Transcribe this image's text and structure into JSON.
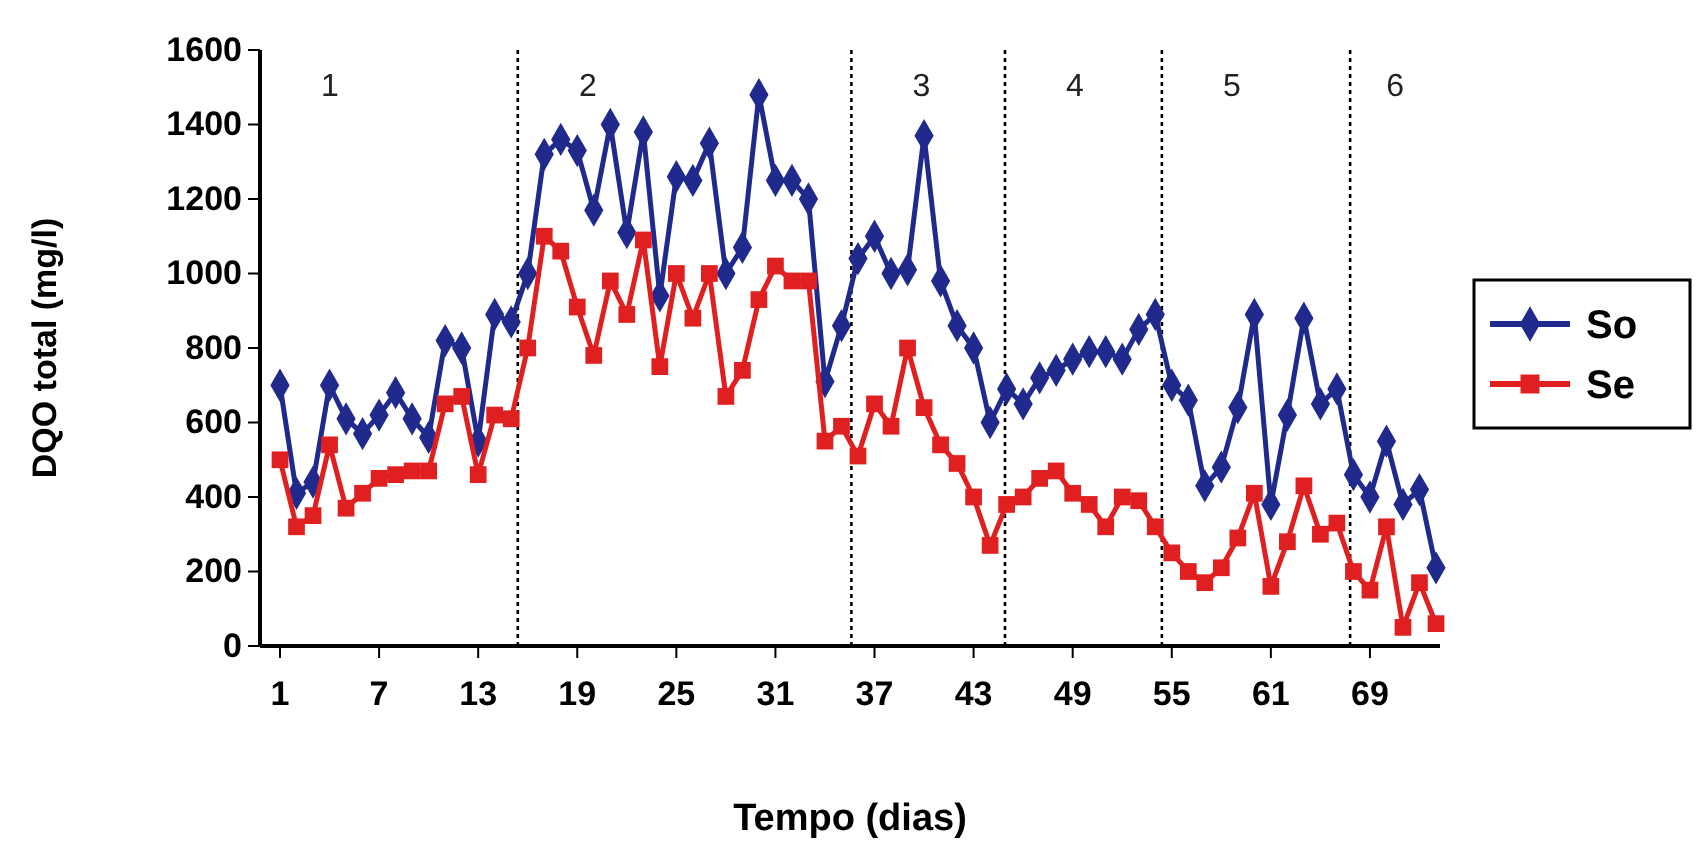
{
  "chart_data": {
    "type": "line",
    "xlabel": "Tempo (dias)",
    "ylabel": "DQO total (mg/l)",
    "categories": [
      "1",
      null,
      null,
      null,
      null,
      null,
      "7",
      null,
      null,
      null,
      null,
      null,
      "13",
      null,
      null,
      null,
      null,
      null,
      "19",
      null,
      null,
      null,
      null,
      null,
      "25",
      null,
      null,
      null,
      null,
      null,
      "31",
      null,
      null,
      null,
      null,
      null,
      "37",
      null,
      null,
      null,
      null,
      null,
      "43",
      null,
      null,
      null,
      null,
      null,
      "49",
      null,
      null,
      null,
      null,
      null,
      "55",
      null,
      null,
      null,
      null,
      null,
      "61",
      null,
      null,
      null,
      null,
      null,
      "69",
      null,
      null,
      null,
      null
    ],
    "series": [
      {
        "name": "So",
        "color": "#1f2a8c",
        "marker": "diamond",
        "values": [
          700,
          410,
          440,
          700,
          610,
          570,
          620,
          680,
          610,
          560,
          820,
          800,
          550,
          890,
          870,
          1000,
          1320,
          1360,
          1330,
          1170,
          1400,
          1110,
          1380,
          940,
          1260,
          1250,
          1350,
          1000,
          1070,
          1480,
          1250,
          1250,
          1200,
          710,
          860,
          1040,
          1100,
          1000,
          1010,
          1370,
          980,
          860,
          800,
          600,
          690,
          650,
          720,
          740,
          770,
          790,
          790,
          770,
          850,
          890,
          700,
          660,
          430,
          480,
          640,
          890,
          380,
          620,
          880,
          650,
          690,
          460,
          400,
          550,
          380,
          420,
          210
        ]
      },
      {
        "name": "Se",
        "color": "#e02020",
        "marker": "square",
        "values": [
          500,
          320,
          350,
          540,
          370,
          410,
          450,
          460,
          470,
          470,
          650,
          670,
          460,
          620,
          610,
          800,
          1100,
          1060,
          910,
          780,
          980,
          890,
          1090,
          750,
          1000,
          880,
          1000,
          670,
          740,
          930,
          1020,
          980,
          980,
          550,
          590,
          510,
          650,
          590,
          800,
          640,
          540,
          490,
          400,
          270,
          380,
          400,
          450,
          470,
          410,
          380,
          320,
          400,
          390,
          320,
          250,
          200,
          170,
          210,
          290,
          410,
          160,
          280,
          430,
          300,
          330,
          200,
          150,
          320,
          50,
          170,
          60
        ]
      }
    ],
    "ylim": [
      0,
      1600
    ],
    "yticks": [
      0,
      200,
      400,
      600,
      800,
      1000,
      1200,
      1400,
      1600
    ],
    "annotations": [
      "1",
      "2",
      "3",
      "4",
      "5",
      "6"
    ],
    "legend": "right",
    "line_style": "solid"
  }
}
